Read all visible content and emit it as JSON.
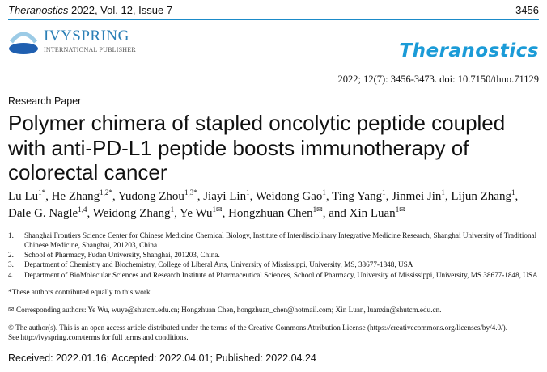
{
  "header": {
    "journal": "Theranostics",
    "rest": " 2022, Vol. 12, Issue 7",
    "page": "3456",
    "rule_color": "#1b8bc9"
  },
  "publisher_logo": {
    "name": "IVYSPRING",
    "sub": "INTERNATIONAL PUBLISHER",
    "mark": "ivys"
  },
  "journal_logo": "Theranostics",
  "citation": "2022; 12(7): 3456-3473. doi: 10.7150/thno.71129",
  "article_type": "Research Paper",
  "title": "Polymer chimera of stapled oncolytic peptide coupled with anti-PD-L1 peptide boosts immunotherapy of colorectal cancer",
  "authors": [
    {
      "name": "Lu Lu",
      "sup": "1*"
    },
    {
      "name": "He Zhang",
      "sup": "1,2*"
    },
    {
      "name": "Yudong Zhou",
      "sup": "1,3*"
    },
    {
      "name": "Jiayi Lin",
      "sup": "1"
    },
    {
      "name": "Weidong Gao",
      "sup": "1"
    },
    {
      "name": "Ting Yang",
      "sup": "1"
    },
    {
      "name": "Jinmei Jin",
      "sup": "1"
    },
    {
      "name": "Lijun Zhang",
      "sup": "1"
    },
    {
      "name": "Dale G. Nagle",
      "sup": "1,4"
    },
    {
      "name": "Weidong Zhang",
      "sup": "1"
    },
    {
      "name": "Ye Wu",
      "sup": "1✉"
    },
    {
      "name": "Hongzhuan Chen",
      "sup": "1✉"
    },
    {
      "name": "and Xin Luan",
      "sup": "1✉"
    }
  ],
  "affiliations": [
    {
      "n": "1.",
      "text": "Shanghai Frontiers Science Center for Chinese Medicine Chemical Biology, Institute of Interdisciplinary Integrative Medicine Research, Shanghai University of Traditional Chinese Medicine, Shanghai, 201203, China"
    },
    {
      "n": "2.",
      "text": "School of Pharmacy, Fudan University, Shanghai, 201203, China."
    },
    {
      "n": "3.",
      "text": "Department of Chemistry and Biochemistry, College of Liberal Arts, University of Mississippi, University, MS, 38677-1848, USA"
    },
    {
      "n": "4.",
      "text": "Department of BioMolecular Sciences and Research Institute of Pharmaceutical Sciences, School of Pharmacy, University of Mississippi, University, MS 38677-1848, USA"
    }
  ],
  "equal_contribution": "*These authors contributed equally to this work.",
  "corresponding": "✉ Corresponding authors: Ye Wu, wuye@shutcm.edu.cn; Hongzhuan Chen, hongzhuan_chen@hotmail.com; Xin Luan, luanxin@shutcm.edu.cn.",
  "copyright": [
    "© The author(s). This is an open access article distributed under the terms of the Creative Commons Attribution License (https://creativecommons.org/licenses/by/4.0/).",
    "See http://ivyspring.com/terms for full terms and conditions."
  ],
  "dates": "Received: 2022.01.16; Accepted: 2022.04.01; Published: 2022.04.24"
}
